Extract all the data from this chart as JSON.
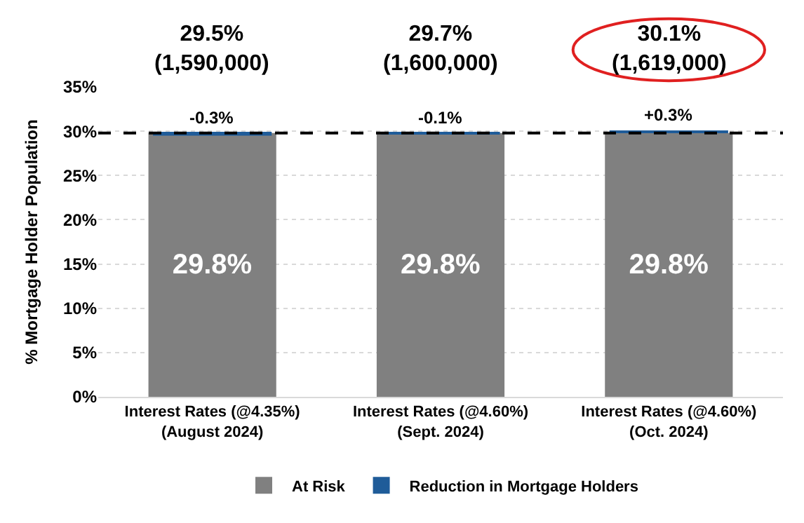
{
  "chart_data": {
    "type": "bar",
    "ylabel": "% Mortgage Holder Population",
    "categories": [
      "Interest Rates (@4.35%)\n(August 2024)",
      "Interest Rates (@4.60%)\n(Sept. 2024)",
      "Interest Rates (@4.60%)\n(Oct. 2024)"
    ],
    "series": [
      {
        "name": "At Risk",
        "color": "#808080",
        "values": [
          29.8,
          29.8,
          29.8
        ],
        "value_labels": [
          "29.8%",
          "29.8%",
          "29.8%"
        ]
      },
      {
        "name": "Reduction in Mortgage Holders",
        "color": "#1f5c99",
        "values": [
          -0.3,
          -0.1,
          0.3
        ],
        "base": [
          29.8,
          29.8,
          29.8
        ],
        "value_labels": [
          "-0.3%",
          "-0.1%",
          "+0.3%"
        ]
      }
    ],
    "totals": [
      "29.5%\n(1,590,000)",
      "29.7%\n(1,600,000)",
      "30.1%\n(1,619,000)"
    ],
    "ylim": [
      0,
      35
    ],
    "yticks": [
      {
        "value": 0,
        "label": "0%"
      },
      {
        "value": 5,
        "label": "5%"
      },
      {
        "value": 10,
        "label": "10%"
      },
      {
        "value": 15,
        "label": "15%"
      },
      {
        "value": 20,
        "label": "20%"
      },
      {
        "value": 25,
        "label": "25%"
      },
      {
        "value": 30,
        "label": "30%"
      },
      {
        "value": 35,
        "label": "35%"
      }
    ],
    "ref_lines": [
      {
        "axis": "y",
        "value": 29.8,
        "color": "#000000",
        "line_style": "dashed"
      }
    ],
    "grid": "y",
    "legend": "bottom"
  }
}
